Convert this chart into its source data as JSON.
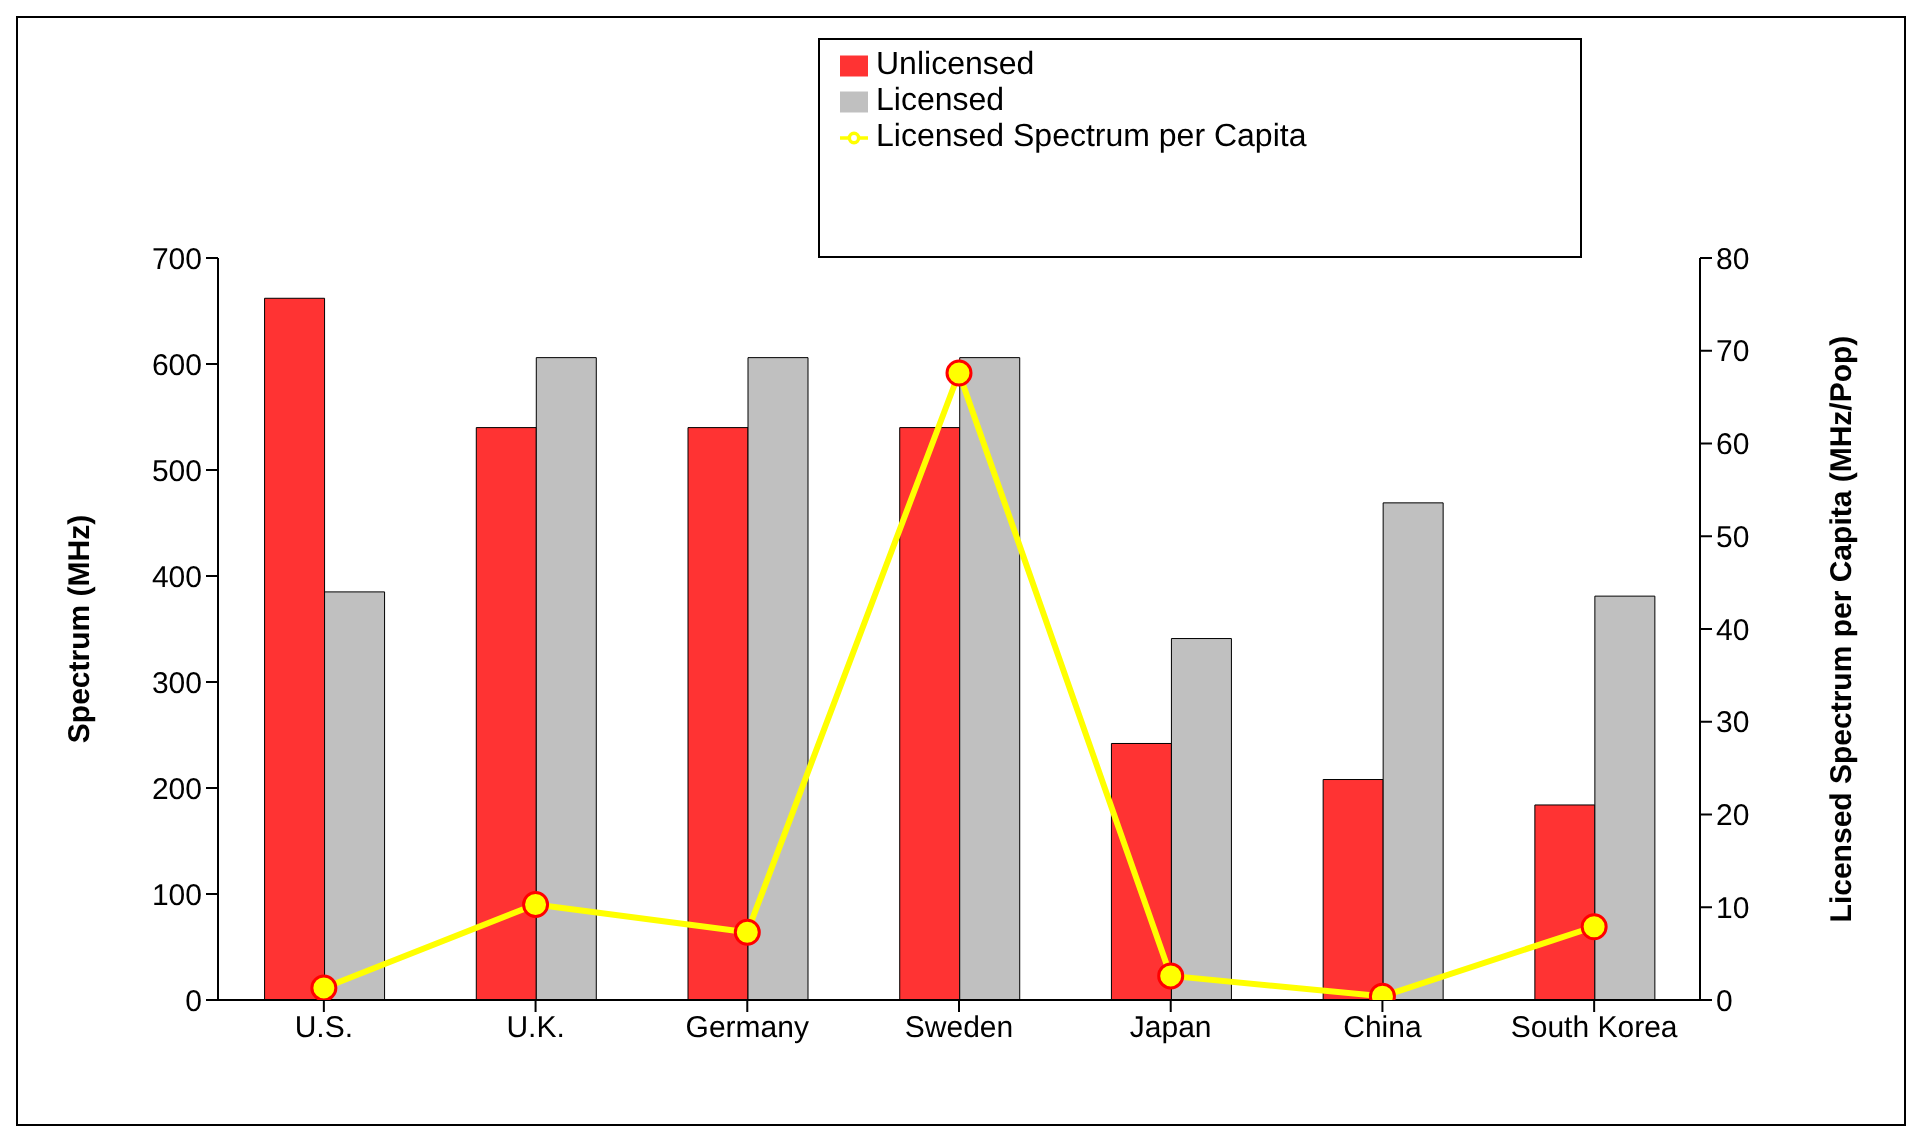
{
  "chart_data": {
    "type": "bar",
    "categories": [
      "U.S.",
      "U.K.",
      "Germany",
      "Sweden",
      "Japan",
      "China",
      "South Korea"
    ],
    "ylabel": "Spectrum (MHz)",
    "y2label": "Licensed Spectrum per Capita (MHz/Pop)",
    "ylim": [
      0,
      700
    ],
    "yticks": [
      0,
      100,
      200,
      300,
      400,
      500,
      600,
      700
    ],
    "y2lim": [
      0,
      80
    ],
    "y2ticks": [
      0,
      10,
      20,
      30,
      40,
      50,
      60,
      70,
      80
    ],
    "legend": "top",
    "marker": "circle",
    "series": [
      {
        "name": "Unlicensed",
        "color": "#ff3333",
        "values": [
          662,
          540,
          540,
          540,
          242,
          208,
          184
        ]
      },
      {
        "name": "Licensed",
        "color": "#c0c0c0",
        "values": [
          385,
          606,
          606,
          606,
          341,
          469,
          381
        ]
      },
      {
        "name": "Licensed Spectrum per Capita",
        "type": "line",
        "axis": "y2",
        "color": "#ffff00",
        "values": [
          1.3,
          10.3,
          7.3,
          67.6,
          2.6,
          0.4,
          7.9
        ]
      }
    ]
  }
}
